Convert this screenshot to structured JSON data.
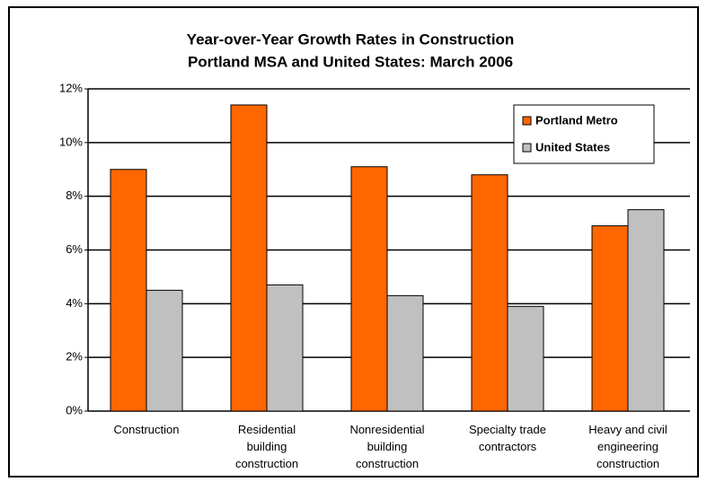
{
  "chart_data": {
    "type": "bar",
    "title": [
      "Year-over-Year Growth Rates in Construction",
      "Portland MSA and United States: March 2006"
    ],
    "categories": [
      "Construction",
      "Residential building construction",
      "Nonresidential building construction",
      "Specialty trade contractors",
      "Heavy and civil engineering construction"
    ],
    "series": [
      {
        "name": "Portland Metro",
        "color": "#ff6600",
        "values": [
          9.0,
          11.4,
          9.1,
          8.8,
          6.9
        ]
      },
      {
        "name": "United States",
        "color": "#c0c0c0",
        "values": [
          4.5,
          4.7,
          4.3,
          3.9,
          7.5
        ]
      }
    ],
    "ylim": [
      0,
      12
    ],
    "yticks": [
      {
        "value": 0,
        "label": "0%"
      },
      {
        "value": 2,
        "label": "2%"
      },
      {
        "value": 4,
        "label": "4%"
      },
      {
        "value": 6,
        "label": "6%"
      },
      {
        "value": 8,
        "label": "8%"
      },
      {
        "value": 10,
        "label": "10%"
      },
      {
        "value": 12,
        "label": "12%"
      }
    ],
    "grid": true,
    "legend": "upper right"
  }
}
